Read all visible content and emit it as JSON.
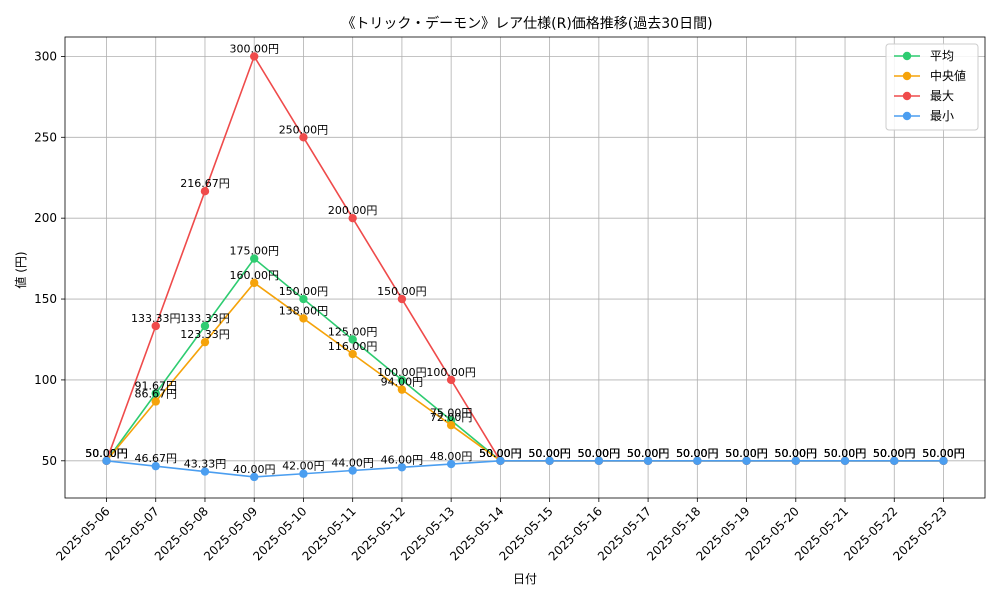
{
  "chart_data": {
    "type": "line",
    "title": "《トリック・デーモン》レア仕様(R)価格推移(過去30日間)",
    "xlabel": "日付",
    "ylabel": "値 (円)",
    "x": [
      "2025-05-06",
      "2025-05-07",
      "2025-05-08",
      "2025-05-09",
      "2025-05-10",
      "2025-05-11",
      "2025-05-12",
      "2025-05-13",
      "2025-05-14",
      "2025-05-15",
      "2025-05-16",
      "2025-05-17",
      "2025-05-18",
      "2025-05-19",
      "2025-05-20",
      "2025-05-21",
      "2025-05-22",
      "2025-05-23"
    ],
    "ylim": [
      27,
      312
    ],
    "yticks": [
      50,
      100,
      150,
      200,
      250,
      300
    ],
    "grid": true,
    "legend_position": "top-right",
    "series": [
      {
        "name": "平均",
        "color": "#2ecc71",
        "values": [
          50.0,
          91.67,
          133.33,
          175.0,
          150.0,
          125.0,
          100.0,
          75.0,
          50.0,
          50.0,
          50.0,
          50.0,
          50.0,
          50.0,
          50.0,
          50.0,
          50.0,
          50.0
        ],
        "labels": [
          "50.00円",
          "91.67円",
          "133.33円",
          "175.00円",
          "150.00円",
          "125.00円",
          "100.00円",
          "75.00円",
          "50.00円",
          "50.00円",
          "50.00円",
          "50.00円",
          "50.00円",
          "50.00円",
          "50.00円",
          "50.00円",
          "50.00円",
          "50.00円"
        ]
      },
      {
        "name": "中央値",
        "color": "#f5a30a",
        "values": [
          50.0,
          86.67,
          123.33,
          160.0,
          138.0,
          116.0,
          94.0,
          72.0,
          50.0,
          50.0,
          50.0,
          50.0,
          50.0,
          50.0,
          50.0,
          50.0,
          50.0,
          50.0
        ],
        "labels": [
          "50.00円",
          "86.67円",
          "123.33円",
          "160.00円",
          "138.00円",
          "116.00円",
          "94.00円",
          "72.00円",
          "50.00円",
          "50.00円",
          "50.00円",
          "50.00円",
          "50.00円",
          "50.00円",
          "50.00円",
          "50.00円",
          "50.00円",
          "50.00円"
        ]
      },
      {
        "name": "最大",
        "color": "#ef4b4b",
        "values": [
          50.0,
          133.33,
          216.67,
          300.0,
          250.0,
          200.0,
          150.0,
          100.0,
          50.0,
          50.0,
          50.0,
          50.0,
          50.0,
          50.0,
          50.0,
          50.0,
          50.0,
          50.0
        ],
        "labels": [
          "50.00円",
          "133.33円",
          "216.67円",
          "300.00円",
          "250.00円",
          "200.00円",
          "150.00円",
          "100.00円",
          "50.00円",
          "50.00円",
          "50.00円",
          "50.00円",
          "50.00円",
          "50.00円",
          "50.00円",
          "50.00円",
          "50.00円",
          "50.00円"
        ]
      },
      {
        "name": "最小",
        "color": "#4b9ef0",
        "values": [
          50.0,
          46.67,
          43.33,
          40.0,
          42.0,
          44.0,
          46.0,
          48.0,
          50.0,
          50.0,
          50.0,
          50.0,
          50.0,
          50.0,
          50.0,
          50.0,
          50.0,
          50.0
        ],
        "labels": [
          "50.00円",
          "46.67円",
          "43.33円",
          "40.00円",
          "42.00円",
          "44.00円",
          "46.00円",
          "48.00円",
          "50.00円",
          "50.00円",
          "50.00円",
          "50.00円",
          "50.00円",
          "50.00円",
          "50.00円",
          "50.00円",
          "50.00円",
          "50.00円"
        ]
      }
    ]
  }
}
